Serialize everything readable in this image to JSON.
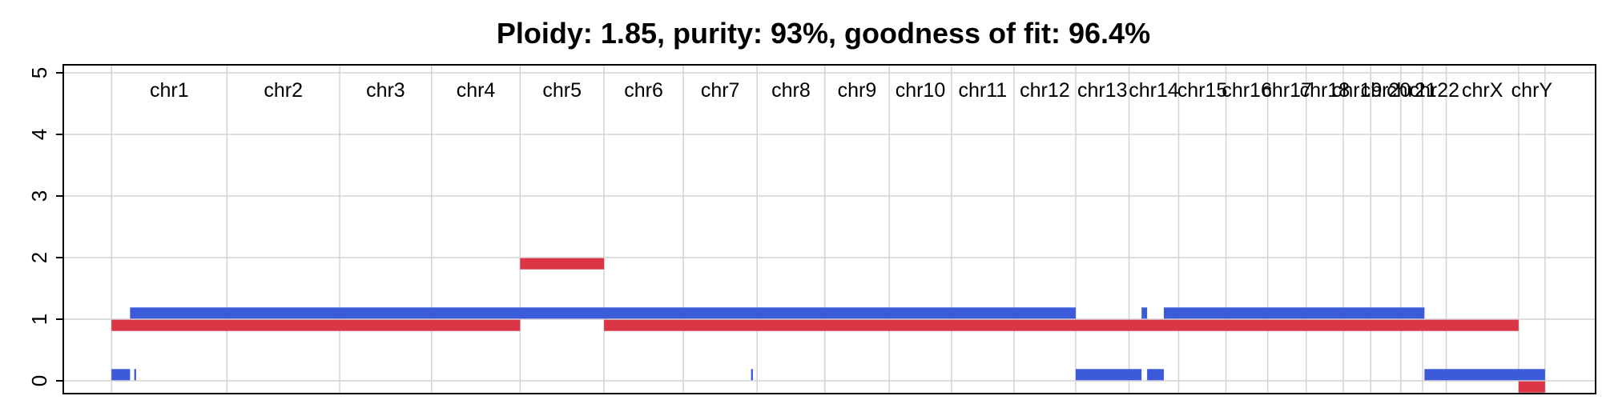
{
  "chart_data": {
    "type": "bar",
    "title": "Ploidy: 1.85, purity: 93%, goodness of fit: 96.4%",
    "xlabel": "",
    "ylabel": "",
    "ylim": [
      0,
      5
    ],
    "y_ticks": [
      "0",
      "1",
      "2",
      "3",
      "4",
      "5"
    ],
    "grid": true,
    "x_unit": "Mb (cumulative genome position)",
    "xlim": [
      -104,
      3200
    ],
    "chromosomes": [
      {
        "name": "chr1",
        "start": 0,
        "end": 249
      },
      {
        "name": "chr2",
        "start": 249,
        "end": 492
      },
      {
        "name": "chr3",
        "start": 492,
        "end": 690
      },
      {
        "name": "chr4",
        "start": 690,
        "end": 881
      },
      {
        "name": "chr5",
        "start": 881,
        "end": 1062
      },
      {
        "name": "chr6",
        "start": 1062,
        "end": 1233
      },
      {
        "name": "chr7",
        "start": 1233,
        "end": 1392
      },
      {
        "name": "chr8",
        "start": 1392,
        "end": 1538
      },
      {
        "name": "chr9",
        "start": 1538,
        "end": 1677
      },
      {
        "name": "chr10",
        "start": 1677,
        "end": 1811
      },
      {
        "name": "chr11",
        "start": 1811,
        "end": 1946
      },
      {
        "name": "chr12",
        "start": 1946,
        "end": 2079
      },
      {
        "name": "chr13",
        "start": 2079,
        "end": 2194
      },
      {
        "name": "chr14",
        "start": 2194,
        "end": 2301
      },
      {
        "name": "chr15",
        "start": 2301,
        "end": 2403
      },
      {
        "name": "chr16",
        "start": 2403,
        "end": 2493
      },
      {
        "name": "chr17",
        "start": 2493,
        "end": 2576
      },
      {
        "name": "chr18",
        "start": 2576,
        "end": 2656
      },
      {
        "name": "chr19",
        "start": 2656,
        "end": 2715
      },
      {
        "name": "chr20",
        "start": 2715,
        "end": 2780
      },
      {
        "name": "chr21",
        "start": 2780,
        "end": 2827
      },
      {
        "name": "chr22",
        "start": 2827,
        "end": 2878
      },
      {
        "name": "chrX",
        "start": 2878,
        "end": 3034
      },
      {
        "name": "chrY",
        "start": 3034,
        "end": 3091
      }
    ],
    "series": [
      {
        "color": "#dc3545",
        "segments": [
          {
            "start": 0,
            "end": 881,
            "cn": 0.9
          },
          {
            "start": 881,
            "end": 1062,
            "cn": 1.9
          },
          {
            "start": 1062,
            "end": 3034,
            "cn": 0.9
          },
          {
            "start": 3034,
            "end": 3091,
            "cn": -0.1
          }
        ]
      },
      {
        "color": "#3b5bdb",
        "segments": [
          {
            "start": 0,
            "end": 40,
            "cn": 0.1
          },
          {
            "start": 49,
            "end": 53,
            "cn": 0.1
          },
          {
            "start": 40,
            "end": 2079,
            "cn": 1.1
          },
          {
            "start": 1379,
            "end": 1383,
            "cn": 0.1
          },
          {
            "start": 2079,
            "end": 2221,
            "cn": 0.1
          },
          {
            "start": 2221,
            "end": 2233,
            "cn": 1.1
          },
          {
            "start": 2233,
            "end": 2269,
            "cn": 0.1
          },
          {
            "start": 2269,
            "end": 2831,
            "cn": 1.1
          },
          {
            "start": 2831,
            "end": 3091,
            "cn": 0.1
          }
        ]
      }
    ]
  }
}
